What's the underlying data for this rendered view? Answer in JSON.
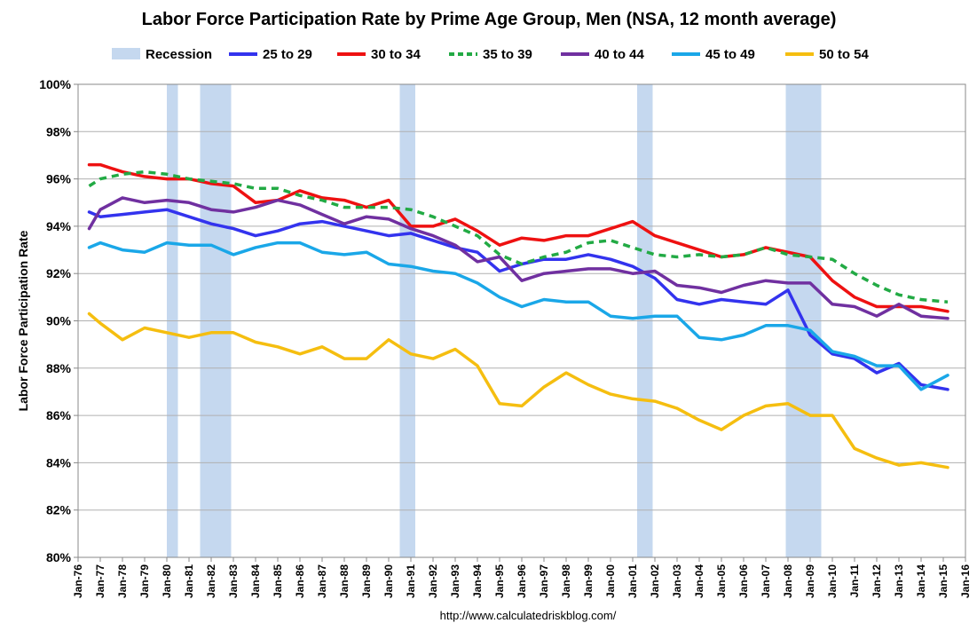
{
  "chart_data": {
    "type": "line",
    "title": "Labor Force Participation Rate by Prime Age Group, Men (NSA, 12 month average)",
    "ylabel": "Labor Force Participation Rate",
    "xlabel": "",
    "source": "http://www.calculatedriskblog.com/",
    "ylim": [
      80,
      100
    ],
    "y_ticks": [
      "80%",
      "82%",
      "84%",
      "86%",
      "88%",
      "90%",
      "92%",
      "94%",
      "96%",
      "98%",
      "100%"
    ],
    "y_tick_values": [
      80,
      82,
      84,
      86,
      88,
      90,
      92,
      94,
      96,
      98,
      100
    ],
    "xlim": [
      1976,
      2016
    ],
    "x_tick_labels": [
      "Jan-76",
      "Jan-77",
      "Jan-78",
      "Jan-79",
      "Jan-80",
      "Jan-81",
      "Jan-82",
      "Jan-83",
      "Jan-84",
      "Jan-85",
      "Jan-86",
      "Jan-87",
      "Jan-88",
      "Jan-89",
      "Jan-90",
      "Jan-91",
      "Jan-92",
      "Jan-93",
      "Jan-94",
      "Jan-95",
      "Jan-96",
      "Jan-97",
      "Jan-98",
      "Jan-99",
      "Jan-00",
      "Jan-01",
      "Jan-02",
      "Jan-03",
      "Jan-04",
      "Jan-05",
      "Jan-06",
      "Jan-07",
      "Jan-08",
      "Jan-09",
      "Jan-10",
      "Jan-11",
      "Jan-12",
      "Jan-13",
      "Jan-14",
      "Jan-15",
      "Jan-16"
    ],
    "grid": true,
    "legend_position": "top",
    "recession": {
      "name": "Recession",
      "color": "#c5d8ef",
      "periods": [
        [
          1980.0,
          1980.5
        ],
        [
          1981.5,
          1982.9
        ],
        [
          1990.5,
          1991.2
        ],
        [
          2001.2,
          2001.9
        ],
        [
          2007.9,
          2009.5
        ]
      ]
    },
    "series": [
      {
        "name": "25 to 29",
        "color": "#3333ee",
        "dash": false,
        "x": [
          1976.5,
          1977,
          1978,
          1979,
          1980,
          1981,
          1982,
          1983,
          1984,
          1985,
          1986,
          1987,
          1988,
          1989,
          1990,
          1991,
          1992,
          1993,
          1994,
          1995,
          1996,
          1997,
          1998,
          1999,
          2000,
          2001,
          2002,
          2003,
          2004,
          2005,
          2006,
          2007,
          2008,
          2009,
          2010,
          2011,
          2012,
          2013,
          2014,
          2015.2
        ],
        "values": [
          94.6,
          94.4,
          94.5,
          94.6,
          94.7,
          94.4,
          94.1,
          93.9,
          93.6,
          93.8,
          94.1,
          94.2,
          94.0,
          93.8,
          93.6,
          93.7,
          93.4,
          93.1,
          92.9,
          92.1,
          92.4,
          92.6,
          92.6,
          92.8,
          92.6,
          92.3,
          91.8,
          90.9,
          90.7,
          90.9,
          90.8,
          90.7,
          91.3,
          89.4,
          88.6,
          88.4,
          87.8,
          88.2,
          87.3,
          87.1
        ]
      },
      {
        "name": "30 to 34",
        "color": "#ee1111",
        "dash": false,
        "x": [
          1976.5,
          1977,
          1978,
          1979,
          1980,
          1981,
          1982,
          1983,
          1984,
          1985,
          1986,
          1987,
          1988,
          1989,
          1990,
          1991,
          1992,
          1993,
          1994,
          1995,
          1996,
          1997,
          1998,
          1999,
          2000,
          2001,
          2002,
          2003,
          2004,
          2005,
          2006,
          2007,
          2008,
          2009,
          2010,
          2011,
          2012,
          2013,
          2014,
          2015.2
        ],
        "values": [
          96.6,
          96.6,
          96.3,
          96.1,
          96.0,
          96.0,
          95.8,
          95.7,
          95.0,
          95.1,
          95.5,
          95.2,
          95.1,
          94.8,
          95.1,
          94.0,
          94.0,
          94.3,
          93.8,
          93.2,
          93.5,
          93.4,
          93.6,
          93.6,
          93.9,
          94.2,
          93.6,
          93.3,
          93.0,
          92.7,
          92.8,
          93.1,
          92.9,
          92.7,
          91.7,
          91.0,
          90.6,
          90.6,
          90.6,
          90.4
        ]
      },
      {
        "name": "35 to 39",
        "color": "#22aa44",
        "dash": true,
        "x": [
          1976.5,
          1977,
          1978,
          1979,
          1980,
          1981,
          1982,
          1983,
          1984,
          1985,
          1986,
          1987,
          1988,
          1989,
          1990,
          1991,
          1992,
          1993,
          1994,
          1995,
          1996,
          1997,
          1998,
          1999,
          2000,
          2001,
          2002,
          2003,
          2004,
          2005,
          2006,
          2007,
          2008,
          2009,
          2010,
          2011,
          2012,
          2013,
          2014,
          2015.2
        ],
        "values": [
          95.7,
          96.0,
          96.2,
          96.3,
          96.2,
          96.0,
          95.9,
          95.8,
          95.6,
          95.6,
          95.3,
          95.1,
          94.8,
          94.8,
          94.8,
          94.7,
          94.4,
          94.0,
          93.6,
          92.8,
          92.4,
          92.7,
          92.9,
          93.3,
          93.4,
          93.1,
          92.8,
          92.7,
          92.8,
          92.7,
          92.8,
          93.1,
          92.8,
          92.7,
          92.6,
          92.0,
          91.5,
          91.1,
          90.9,
          90.8
        ]
      },
      {
        "name": "40 to 44",
        "color": "#7030a0",
        "dash": false,
        "x": [
          1976.5,
          1977,
          1978,
          1979,
          1980,
          1981,
          1982,
          1983,
          1984,
          1985,
          1986,
          1987,
          1988,
          1989,
          1990,
          1991,
          1992,
          1993,
          1994,
          1995,
          1996,
          1997,
          1998,
          1999,
          2000,
          2001,
          2002,
          2003,
          2004,
          2005,
          2006,
          2007,
          2008,
          2009,
          2010,
          2011,
          2012,
          2013,
          2014,
          2015.2
        ],
        "values": [
          93.9,
          94.7,
          95.2,
          95.0,
          95.1,
          95.0,
          94.7,
          94.6,
          94.8,
          95.1,
          94.9,
          94.5,
          94.1,
          94.4,
          94.3,
          93.9,
          93.6,
          93.2,
          92.5,
          92.7,
          91.7,
          92.0,
          92.1,
          92.2,
          92.2,
          92.0,
          92.1,
          91.5,
          91.4,
          91.2,
          91.5,
          91.7,
          91.6,
          91.6,
          90.7,
          90.6,
          90.2,
          90.7,
          90.2,
          90.1
        ]
      },
      {
        "name": "45 to 49",
        "color": "#1aa7e8",
        "dash": false,
        "x": [
          1976.5,
          1977,
          1978,
          1979,
          1980,
          1981,
          1982,
          1983,
          1984,
          1985,
          1986,
          1987,
          1988,
          1989,
          1990,
          1991,
          1992,
          1993,
          1994,
          1995,
          1996,
          1997,
          1998,
          1999,
          2000,
          2001,
          2002,
          2003,
          2004,
          2005,
          2006,
          2007,
          2008,
          2009,
          2010,
          2011,
          2012,
          2013,
          2014,
          2015.2
        ],
        "values": [
          93.1,
          93.3,
          93.0,
          92.9,
          93.3,
          93.2,
          93.2,
          92.8,
          93.1,
          93.3,
          93.3,
          92.9,
          92.8,
          92.9,
          92.4,
          92.3,
          92.1,
          92.0,
          91.6,
          91.0,
          90.6,
          90.9,
          90.8,
          90.8,
          90.2,
          90.1,
          90.2,
          90.2,
          89.3,
          89.2,
          89.4,
          89.8,
          89.8,
          89.6,
          88.7,
          88.5,
          88.1,
          88.1,
          87.1,
          87.7
        ]
      },
      {
        "name": "50 to 54",
        "color": "#f5be10",
        "dash": false,
        "x": [
          1976.5,
          1977,
          1978,
          1979,
          1980,
          1981,
          1982,
          1983,
          1984,
          1985,
          1986,
          1987,
          1988,
          1989,
          1990,
          1991,
          1992,
          1993,
          1994,
          1995,
          1996,
          1997,
          1998,
          1999,
          2000,
          2001,
          2002,
          2003,
          2004,
          2005,
          2006,
          2007,
          2008,
          2009,
          2010,
          2011,
          2012,
          2013,
          2014,
          2015.2
        ],
        "values": [
          90.3,
          89.9,
          89.2,
          89.7,
          89.5,
          89.3,
          89.5,
          89.5,
          89.1,
          88.9,
          88.6,
          88.9,
          88.4,
          88.4,
          89.2,
          88.6,
          88.4,
          88.8,
          88.1,
          86.5,
          86.4,
          87.2,
          87.8,
          87.3,
          86.9,
          86.7,
          86.6,
          86.3,
          85.8,
          85.4,
          86.0,
          86.4,
          86.5,
          86.0,
          86.0,
          84.6,
          84.2,
          83.9,
          84.0,
          83.8
        ]
      }
    ]
  }
}
